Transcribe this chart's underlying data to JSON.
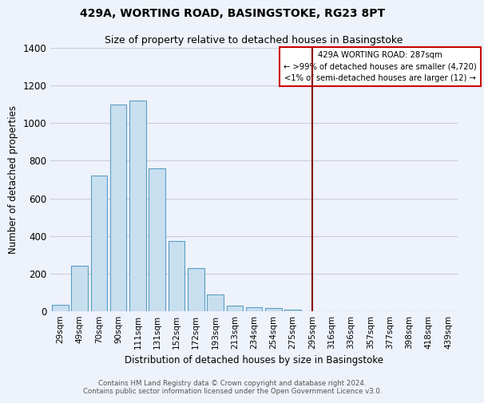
{
  "title": "429A, WORTING ROAD, BASINGSTOKE, RG23 8PT",
  "subtitle": "Size of property relative to detached houses in Basingstoke",
  "xlabel": "Distribution of detached houses by size in Basingstoke",
  "ylabel": "Number of detached properties",
  "bar_labels": [
    "29sqm",
    "49sqm",
    "70sqm",
    "90sqm",
    "111sqm",
    "131sqm",
    "152sqm",
    "172sqm",
    "193sqm",
    "213sqm",
    "234sqm",
    "254sqm",
    "275sqm",
    "295sqm",
    "316sqm",
    "336sqm",
    "357sqm",
    "377sqm",
    "398sqm",
    "418sqm",
    "439sqm"
  ],
  "bar_values": [
    35,
    240,
    720,
    1100,
    1120,
    760,
    375,
    230,
    90,
    30,
    20,
    15,
    10,
    0,
    0,
    0,
    0,
    0,
    0,
    0,
    0
  ],
  "bar_color": "#c8dff0",
  "bar_edge_color": "#5b9dc4",
  "vline_color": "#8b0000",
  "annotation_title": "429A WORTING ROAD: 287sqm",
  "annotation_line1": "← >99% of detached houses are smaller (4,720)",
  "annotation_line2": "<1% of semi-detached houses are larger (12) →",
  "annotation_box_color": "white",
  "annotation_box_edge": "#cc0000",
  "ylim": [
    0,
    1400
  ],
  "yticks": [
    0,
    200,
    400,
    600,
    800,
    1000,
    1200,
    1400
  ],
  "footer_line1": "Contains HM Land Registry data © Crown copyright and database right 2024.",
  "footer_line2": "Contains public sector information licensed under the Open Government Licence v3.0.",
  "bg_color": "#eef2fa",
  "grid_color": "#ccccdd"
}
